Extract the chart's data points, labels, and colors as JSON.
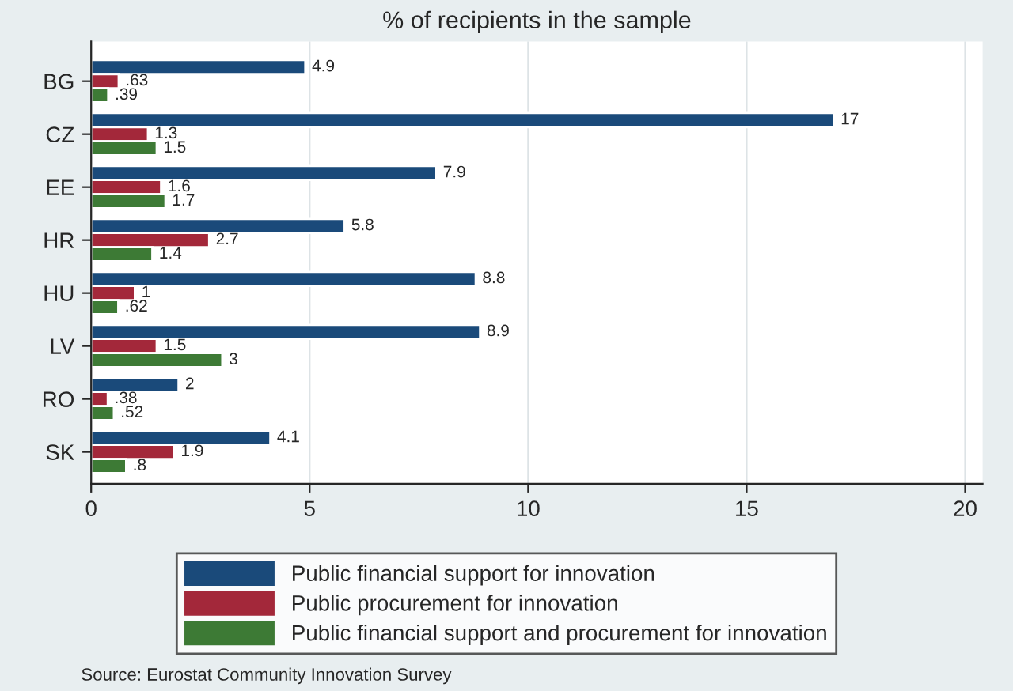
{
  "chart_data": {
    "type": "bar",
    "orientation": "horizontal",
    "title": "% of recipients in the sample",
    "categories": [
      "BG",
      "CZ",
      "EE",
      "HR",
      "HU",
      "LV",
      "RO",
      "SK"
    ],
    "series": [
      {
        "name": "Public financial support for innovation",
        "color": "#1a4a7a",
        "values": [
          4.9,
          17,
          7.9,
          5.8,
          8.8,
          8.9,
          2,
          4.1
        ],
        "value_labels": [
          "4.9",
          "17",
          "7.9",
          "5.8",
          "8.8",
          "8.9",
          "2",
          "4.1"
        ]
      },
      {
        "name": "Public procurement for innovation",
        "color": "#a3283a",
        "values": [
          0.63,
          1.3,
          1.6,
          2.7,
          1,
          1.5,
          0.38,
          1.9
        ],
        "value_labels": [
          ".63",
          "1.3",
          "1.6",
          "2.7",
          "1",
          "1.5",
          ".38",
          "1.9"
        ]
      },
      {
        "name": "Public financial support and procurement for innovation",
        "color": "#3d7a35",
        "values": [
          0.39,
          1.5,
          1.7,
          1.4,
          0.62,
          3,
          0.52,
          0.8
        ],
        "value_labels": [
          ".39",
          "1.5",
          "1.7",
          "1.4",
          ".62",
          "3",
          ".52",
          ".8"
        ]
      }
    ],
    "xlim": [
      0,
      20.4
    ],
    "xticks": [
      0,
      5,
      10,
      15,
      20
    ],
    "grid": "x",
    "legend": "bottom",
    "annotations": [
      "Source: Eurostat Community Innovation Survey"
    ]
  }
}
